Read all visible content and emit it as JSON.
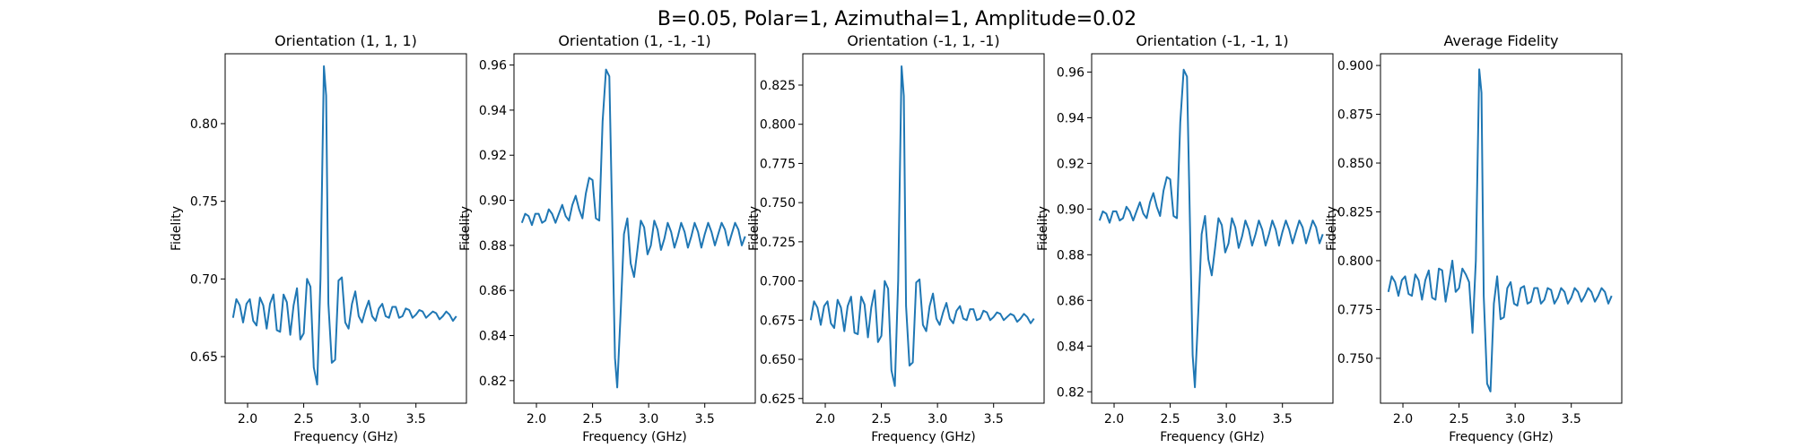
{
  "figure": {
    "title": "B=0.05, Polar=1, Azimuthal=1, Amplitude=0.02"
  },
  "chart_data": [
    {
      "type": "line",
      "title": "Orientation (1, 1, 1)",
      "xlabel": "Frequency (GHz)",
      "ylabel": "Fidelity",
      "xlim": [
        1.8,
        3.95
      ],
      "ylim": [
        0.62,
        0.845
      ],
      "xticks": [
        2.0,
        2.5,
        3.0,
        3.5
      ],
      "yticks": [
        0.65,
        0.7,
        0.75,
        0.8
      ],
      "grid": false,
      "color": "#1f77b4",
      "x": [
        1.87,
        1.9,
        1.93,
        1.96,
        1.99,
        2.02,
        2.05,
        2.08,
        2.11,
        2.14,
        2.17,
        2.2,
        2.23,
        2.26,
        2.29,
        2.32,
        2.35,
        2.38,
        2.41,
        2.44,
        2.47,
        2.5,
        2.53,
        2.56,
        2.59,
        2.62,
        2.65,
        2.68,
        2.7,
        2.72,
        2.75,
        2.78,
        2.81,
        2.84,
        2.87,
        2.9,
        2.93,
        2.96,
        2.99,
        3.02,
        3.05,
        3.08,
        3.11,
        3.14,
        3.17,
        3.2,
        3.23,
        3.26,
        3.29,
        3.32,
        3.35,
        3.38,
        3.41,
        3.44,
        3.47,
        3.5,
        3.53,
        3.56,
        3.59,
        3.62,
        3.65,
        3.68,
        3.71,
        3.74,
        3.77,
        3.8,
        3.83,
        3.86
      ],
      "values": [
        0.675,
        0.687,
        0.683,
        0.672,
        0.684,
        0.687,
        0.673,
        0.67,
        0.688,
        0.683,
        0.668,
        0.684,
        0.69,
        0.667,
        0.666,
        0.69,
        0.685,
        0.664,
        0.683,
        0.694,
        0.661,
        0.665,
        0.7,
        0.695,
        0.643,
        0.632,
        0.7,
        0.837,
        0.818,
        0.684,
        0.646,
        0.648,
        0.699,
        0.701,
        0.672,
        0.668,
        0.684,
        0.692,
        0.676,
        0.672,
        0.68,
        0.686,
        0.676,
        0.673,
        0.681,
        0.684,
        0.676,
        0.675,
        0.682,
        0.682,
        0.675,
        0.676,
        0.681,
        0.68,
        0.675,
        0.677,
        0.68,
        0.679,
        0.675,
        0.677,
        0.679,
        0.678,
        0.674,
        0.676,
        0.679,
        0.677,
        0.673,
        0.676
      ]
    },
    {
      "type": "line",
      "title": "Orientation (1, -1, -1)",
      "xlabel": "Frequency (GHz)",
      "ylabel": "Fidelity",
      "xlim": [
        1.8,
        3.95
      ],
      "ylim": [
        0.81,
        0.965
      ],
      "xticks": [
        2.0,
        2.5,
        3.0,
        3.5
      ],
      "yticks": [
        0.82,
        0.84,
        0.86,
        0.88,
        0.9,
        0.92,
        0.94,
        0.96
      ],
      "grid": false,
      "color": "#1f77b4",
      "x": [
        1.87,
        1.9,
        1.93,
        1.96,
        1.99,
        2.02,
        2.05,
        2.08,
        2.11,
        2.14,
        2.17,
        2.2,
        2.23,
        2.26,
        2.29,
        2.32,
        2.35,
        2.38,
        2.41,
        2.44,
        2.47,
        2.5,
        2.53,
        2.56,
        2.59,
        2.62,
        2.65,
        2.68,
        2.7,
        2.72,
        2.75,
        2.78,
        2.81,
        2.84,
        2.87,
        2.9,
        2.93,
        2.96,
        2.99,
        3.02,
        3.05,
        3.08,
        3.11,
        3.14,
        3.17,
        3.2,
        3.23,
        3.26,
        3.29,
        3.32,
        3.35,
        3.38,
        3.41,
        3.44,
        3.47,
        3.5,
        3.53,
        3.56,
        3.59,
        3.62,
        3.65,
        3.68,
        3.71,
        3.74,
        3.77,
        3.8,
        3.83,
        3.86
      ],
      "values": [
        0.89,
        0.894,
        0.893,
        0.889,
        0.894,
        0.894,
        0.89,
        0.891,
        0.896,
        0.894,
        0.89,
        0.894,
        0.898,
        0.893,
        0.891,
        0.898,
        0.902,
        0.896,
        0.892,
        0.903,
        0.91,
        0.909,
        0.892,
        0.891,
        0.935,
        0.958,
        0.955,
        0.88,
        0.83,
        0.817,
        0.85,
        0.885,
        0.892,
        0.872,
        0.866,
        0.878,
        0.891,
        0.888,
        0.876,
        0.88,
        0.891,
        0.887,
        0.878,
        0.883,
        0.89,
        0.886,
        0.879,
        0.884,
        0.89,
        0.886,
        0.879,
        0.884,
        0.89,
        0.886,
        0.879,
        0.885,
        0.89,
        0.886,
        0.88,
        0.885,
        0.89,
        0.887,
        0.88,
        0.885,
        0.89,
        0.887,
        0.88,
        0.884
      ]
    },
    {
      "type": "line",
      "title": "Orientation (-1, 1, -1)",
      "xlabel": "Frequency (GHz)",
      "ylabel": "Fidelity",
      "xlim": [
        1.8,
        3.95
      ],
      "ylim": [
        0.622,
        0.845
      ],
      "xticks": [
        2.0,
        2.5,
        3.0,
        3.5
      ],
      "yticks": [
        0.625,
        0.65,
        0.675,
        0.7,
        0.725,
        0.75,
        0.775,
        0.8,
        0.825
      ],
      "grid": false,
      "color": "#1f77b4",
      "x": [
        1.87,
        1.9,
        1.93,
        1.96,
        1.99,
        2.02,
        2.05,
        2.08,
        2.11,
        2.14,
        2.17,
        2.2,
        2.23,
        2.26,
        2.29,
        2.32,
        2.35,
        2.38,
        2.41,
        2.44,
        2.47,
        2.5,
        2.53,
        2.56,
        2.59,
        2.62,
        2.65,
        2.68,
        2.7,
        2.72,
        2.75,
        2.78,
        2.81,
        2.84,
        2.87,
        2.9,
        2.93,
        2.96,
        2.99,
        3.02,
        3.05,
        3.08,
        3.11,
        3.14,
        3.17,
        3.2,
        3.23,
        3.26,
        3.29,
        3.32,
        3.35,
        3.38,
        3.41,
        3.44,
        3.47,
        3.5,
        3.53,
        3.56,
        3.59,
        3.62,
        3.65,
        3.68,
        3.71,
        3.74,
        3.77,
        3.8,
        3.83,
        3.86
      ],
      "values": [
        0.675,
        0.687,
        0.683,
        0.672,
        0.684,
        0.687,
        0.673,
        0.67,
        0.688,
        0.683,
        0.668,
        0.684,
        0.69,
        0.667,
        0.666,
        0.69,
        0.685,
        0.664,
        0.683,
        0.694,
        0.661,
        0.665,
        0.7,
        0.695,
        0.643,
        0.633,
        0.7,
        0.837,
        0.818,
        0.684,
        0.646,
        0.648,
        0.699,
        0.701,
        0.672,
        0.668,
        0.684,
        0.692,
        0.676,
        0.672,
        0.68,
        0.686,
        0.676,
        0.673,
        0.681,
        0.684,
        0.676,
        0.675,
        0.682,
        0.682,
        0.675,
        0.676,
        0.681,
        0.68,
        0.675,
        0.677,
        0.68,
        0.679,
        0.675,
        0.677,
        0.679,
        0.678,
        0.674,
        0.676,
        0.679,
        0.677,
        0.673,
        0.676
      ]
    },
    {
      "type": "line",
      "title": "Orientation (-1, -1, 1)",
      "xlabel": "Frequency (GHz)",
      "ylabel": "Fidelity",
      "xlim": [
        1.8,
        3.95
      ],
      "ylim": [
        0.815,
        0.968
      ],
      "xticks": [
        2.0,
        2.5,
        3.0,
        3.5
      ],
      "yticks": [
        0.82,
        0.84,
        0.86,
        0.88,
        0.9,
        0.92,
        0.94,
        0.96
      ],
      "grid": false,
      "color": "#1f77b4",
      "x": [
        1.87,
        1.9,
        1.93,
        1.96,
        1.99,
        2.02,
        2.05,
        2.08,
        2.11,
        2.14,
        2.17,
        2.2,
        2.23,
        2.26,
        2.29,
        2.32,
        2.35,
        2.38,
        2.41,
        2.44,
        2.47,
        2.5,
        2.53,
        2.56,
        2.59,
        2.62,
        2.65,
        2.68,
        2.7,
        2.72,
        2.75,
        2.78,
        2.81,
        2.84,
        2.87,
        2.9,
        2.93,
        2.96,
        2.99,
        3.02,
        3.05,
        3.08,
        3.11,
        3.14,
        3.17,
        3.2,
        3.23,
        3.26,
        3.29,
        3.32,
        3.35,
        3.38,
        3.41,
        3.44,
        3.47,
        3.5,
        3.53,
        3.56,
        3.59,
        3.62,
        3.65,
        3.68,
        3.71,
        3.74,
        3.77,
        3.8,
        3.83,
        3.86
      ],
      "values": [
        0.895,
        0.899,
        0.898,
        0.894,
        0.899,
        0.899,
        0.895,
        0.896,
        0.901,
        0.899,
        0.895,
        0.899,
        0.903,
        0.898,
        0.896,
        0.903,
        0.907,
        0.901,
        0.897,
        0.908,
        0.914,
        0.913,
        0.897,
        0.896,
        0.938,
        0.961,
        0.958,
        0.884,
        0.836,
        0.822,
        0.855,
        0.889,
        0.897,
        0.878,
        0.871,
        0.883,
        0.896,
        0.893,
        0.881,
        0.885,
        0.896,
        0.892,
        0.883,
        0.888,
        0.895,
        0.891,
        0.884,
        0.889,
        0.895,
        0.891,
        0.884,
        0.889,
        0.895,
        0.891,
        0.884,
        0.89,
        0.895,
        0.891,
        0.885,
        0.89,
        0.895,
        0.892,
        0.885,
        0.89,
        0.895,
        0.892,
        0.885,
        0.889
      ]
    },
    {
      "type": "line",
      "title": "Average Fidelity",
      "xlabel": "Frequency (GHz)",
      "ylabel": "Fidelity",
      "xlim": [
        1.8,
        3.95
      ],
      "ylim": [
        0.727,
        0.906
      ],
      "xticks": [
        2.0,
        2.5,
        3.0,
        3.5
      ],
      "yticks": [
        0.75,
        0.775,
        0.8,
        0.825,
        0.85,
        0.875,
        0.9
      ],
      "grid": false,
      "color": "#1f77b4",
      "x": [
        1.87,
        1.9,
        1.93,
        1.96,
        1.99,
        2.02,
        2.05,
        2.08,
        2.11,
        2.14,
        2.17,
        2.2,
        2.23,
        2.26,
        2.29,
        2.32,
        2.35,
        2.38,
        2.41,
        2.44,
        2.47,
        2.5,
        2.53,
        2.56,
        2.59,
        2.62,
        2.65,
        2.68,
        2.7,
        2.72,
        2.75,
        2.78,
        2.81,
        2.84,
        2.87,
        2.9,
        2.93,
        2.96,
        2.99,
        3.02,
        3.05,
        3.08,
        3.11,
        3.14,
        3.17,
        3.2,
        3.23,
        3.26,
        3.29,
        3.32,
        3.35,
        3.38,
        3.41,
        3.44,
        3.47,
        3.5,
        3.53,
        3.56,
        3.59,
        3.62,
        3.65,
        3.68,
        3.71,
        3.74,
        3.77,
        3.8,
        3.83,
        3.86
      ],
      "values": [
        0.784,
        0.792,
        0.789,
        0.782,
        0.79,
        0.792,
        0.783,
        0.782,
        0.793,
        0.79,
        0.78,
        0.79,
        0.795,
        0.781,
        0.78,
        0.796,
        0.795,
        0.779,
        0.789,
        0.8,
        0.784,
        0.786,
        0.796,
        0.793,
        0.789,
        0.763,
        0.8,
        0.898,
        0.886,
        0.782,
        0.737,
        0.733,
        0.778,
        0.792,
        0.77,
        0.771,
        0.786,
        0.789,
        0.778,
        0.777,
        0.786,
        0.787,
        0.778,
        0.779,
        0.786,
        0.786,
        0.778,
        0.78,
        0.786,
        0.785,
        0.778,
        0.781,
        0.786,
        0.784,
        0.778,
        0.781,
        0.786,
        0.784,
        0.779,
        0.782,
        0.786,
        0.784,
        0.779,
        0.782,
        0.786,
        0.784,
        0.778,
        0.782
      ]
    }
  ]
}
